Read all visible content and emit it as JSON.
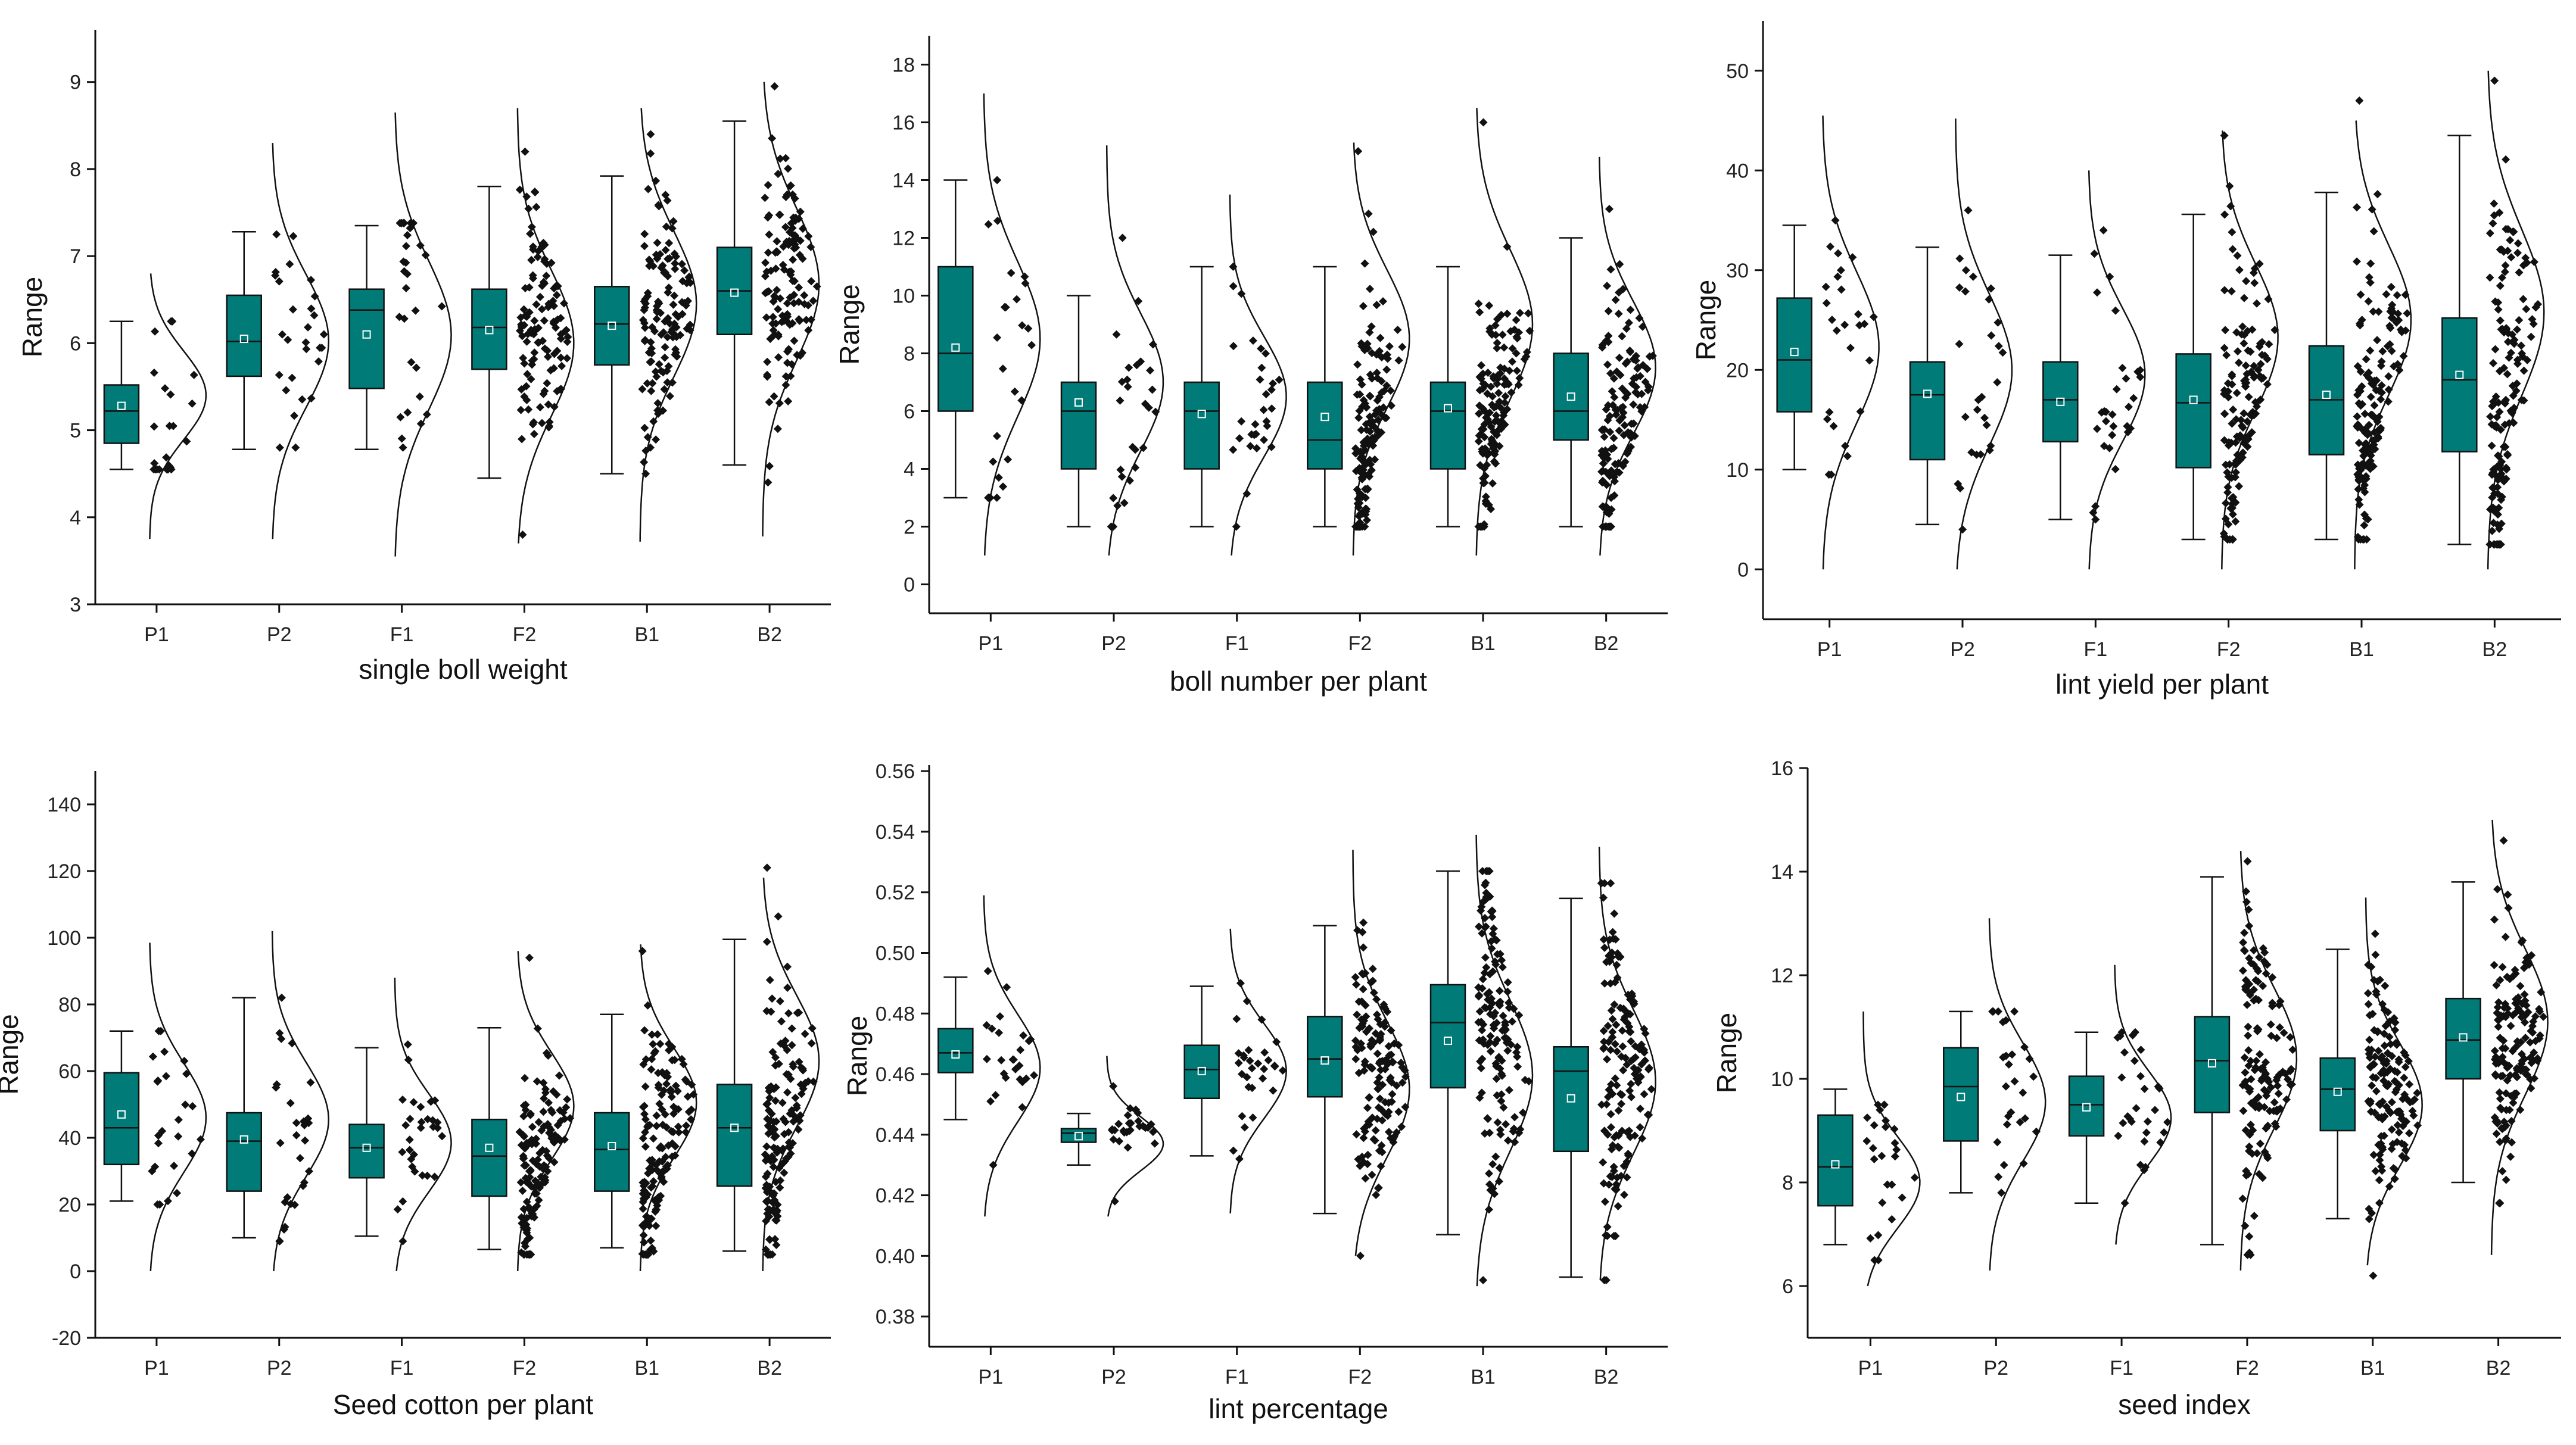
{
  "colors": {
    "box_fill": "#007b78",
    "box_stroke": "#111111",
    "axis": "#111111",
    "point": "#111111",
    "curve": "#111111"
  },
  "chart_data": [
    {
      "type": "box",
      "title": "",
      "xlabel": "single boll weight",
      "ylabel": "Range",
      "categories": [
        "P1",
        "P2",
        "F1",
        "F2",
        "B1",
        "B2"
      ],
      "ylim": [
        3,
        9.6
      ],
      "yticks": [
        "3",
        "4",
        "5",
        "6",
        "7",
        "8",
        "9"
      ],
      "boxes": [
        {
          "min": 4.55,
          "q1": 4.85,
          "median": 5.22,
          "mean": 5.28,
          "q3": 5.52,
          "max": 6.25,
          "cmin": 3.75,
          "cmax": 6.8,
          "n": 24,
          "smin": 4.55,
          "smax": 6.25
        },
        {
          "min": 4.78,
          "q1": 5.62,
          "median": 6.02,
          "mean": 6.05,
          "q3": 6.55,
          "max": 7.28,
          "cmin": 3.75,
          "cmax": 8.3,
          "n": 28,
          "smin": 4.8,
          "smax": 7.25
        },
        {
          "min": 4.78,
          "q1": 5.48,
          "median": 6.38,
          "mean": 6.1,
          "q3": 6.62,
          "max": 7.35,
          "cmin": 3.55,
          "cmax": 8.65,
          "n": 30,
          "smin": 4.8,
          "smax": 7.38
        },
        {
          "min": 4.45,
          "q1": 5.7,
          "median": 6.18,
          "mean": 6.15,
          "q3": 6.62,
          "max": 7.8,
          "cmin": 3.7,
          "cmax": 8.7,
          "n": 120,
          "smin": 3.8,
          "smax": 8.2
        },
        {
          "min": 4.5,
          "q1": 5.75,
          "median": 6.22,
          "mean": 6.2,
          "q3": 6.65,
          "max": 7.92,
          "cmin": 3.72,
          "cmax": 8.7,
          "n": 130,
          "smin": 4.5,
          "smax": 8.4
        },
        {
          "min": 4.6,
          "q1": 6.1,
          "median": 6.6,
          "mean": 6.58,
          "q3": 7.1,
          "max": 8.55,
          "cmin": 3.78,
          "cmax": 9.0,
          "n": 130,
          "smin": 4.4,
          "smax": 8.95
        }
      ]
    },
    {
      "type": "box",
      "title": "",
      "xlabel": "boll number per plant",
      "ylabel": "Range",
      "categories": [
        "P1",
        "P2",
        "F1",
        "F2",
        "B1",
        "B2"
      ],
      "ylim": [
        -1,
        19
      ],
      "yticks": [
        "0",
        "2",
        "4",
        "6",
        "8",
        "10",
        "12",
        "14",
        "16",
        "18"
      ],
      "boxes": [
        {
          "min": 3,
          "q1": 6,
          "median": 8,
          "mean": 8.2,
          "q3": 11,
          "max": 14,
          "cmin": 1,
          "cmax": 17,
          "n": 26,
          "smin": 3,
          "smax": 14
        },
        {
          "min": 2,
          "q1": 4,
          "median": 6,
          "mean": 6.3,
          "q3": 7,
          "max": 10,
          "cmin": 1,
          "cmax": 15.2,
          "n": 28,
          "smin": 2,
          "smax": 12
        },
        {
          "min": 2,
          "q1": 4,
          "median": 6,
          "mean": 5.9,
          "q3": 7,
          "max": 11,
          "cmin": 1,
          "cmax": 13.5,
          "n": 30,
          "smin": 2,
          "smax": 11
        },
        {
          "min": 2,
          "q1": 4,
          "median": 5,
          "mean": 5.8,
          "q3": 7,
          "max": 11,
          "cmin": 1,
          "cmax": 15.3,
          "n": 140,
          "smin": 2,
          "smax": 15
        },
        {
          "min": 2,
          "q1": 4,
          "median": 6,
          "mean": 6.1,
          "q3": 7,
          "max": 11,
          "cmin": 1,
          "cmax": 16.5,
          "n": 140,
          "smin": 2,
          "smax": 16
        },
        {
          "min": 2,
          "q1": 5,
          "median": 6,
          "mean": 6.5,
          "q3": 8,
          "max": 12,
          "cmin": 1,
          "cmax": 14.8,
          "n": 140,
          "smin": 2,
          "smax": 13
        }
      ]
    },
    {
      "type": "box",
      "title": "",
      "xlabel": "lint yield per plant",
      "ylabel": "Range",
      "categories": [
        "P1",
        "P2",
        "F1",
        "F2",
        "B1",
        "B2"
      ],
      "ylim": [
        -5,
        55
      ],
      "yticks": [
        "0",
        "10",
        "20",
        "30",
        "40",
        "50"
      ],
      "boxes": [
        {
          "min": 10,
          "q1": 15.8,
          "median": 21,
          "mean": 21.8,
          "q3": 27.2,
          "max": 34.5,
          "cmin": 0,
          "cmax": 45.5,
          "n": 26,
          "smin": 9.5,
          "smax": 35
        },
        {
          "min": 4.5,
          "q1": 11,
          "median": 17.5,
          "mean": 17.6,
          "q3": 20.8,
          "max": 32.3,
          "cmin": 0,
          "cmax": 45.2,
          "n": 28,
          "smin": 4,
          "smax": 36
        },
        {
          "min": 5,
          "q1": 12.8,
          "median": 17,
          "mean": 16.8,
          "q3": 20.8,
          "max": 31.5,
          "cmin": 0,
          "cmax": 40,
          "n": 30,
          "smin": 5,
          "smax": 34
        },
        {
          "min": 3,
          "q1": 10.2,
          "median": 16.7,
          "mean": 17,
          "q3": 21.6,
          "max": 35.6,
          "cmin": 0,
          "cmax": 44,
          "n": 140,
          "smin": 3,
          "smax": 43.5
        },
        {
          "min": 3,
          "q1": 11.5,
          "median": 17,
          "mean": 17.5,
          "q3": 22.4,
          "max": 37.8,
          "cmin": 0,
          "cmax": 45,
          "n": 150,
          "smin": 3,
          "smax": 47
        },
        {
          "min": 2.5,
          "q1": 11.8,
          "median": 19,
          "mean": 19.5,
          "q3": 25.2,
          "max": 43.5,
          "cmin": 0,
          "cmax": 50,
          "n": 150,
          "smin": 2.5,
          "smax": 49
        }
      ]
    },
    {
      "type": "box",
      "title": "",
      "xlabel": "Seed cotton per plant",
      "ylabel": "Range",
      "categories": [
        "P1",
        "P2",
        "F1",
        "F2",
        "B1",
        "B2"
      ],
      "ylim": [
        -20,
        150
      ],
      "yticks": [
        "-20",
        "0",
        "20",
        "40",
        "60",
        "80",
        "100",
        "120",
        "140"
      ],
      "boxes": [
        {
          "min": 21,
          "q1": 32,
          "median": 43,
          "mean": 47,
          "q3": 59.5,
          "max": 72,
          "cmin": 0,
          "cmax": 98.5,
          "n": 26,
          "smin": 20,
          "smax": 72
        },
        {
          "min": 10,
          "q1": 24,
          "median": 39,
          "mean": 39.5,
          "q3": 47.5,
          "max": 82,
          "cmin": 0,
          "cmax": 102,
          "n": 28,
          "smin": 9,
          "smax": 82
        },
        {
          "min": 10.5,
          "q1": 28,
          "median": 37,
          "mean": 37,
          "q3": 44,
          "max": 67,
          "cmin": 0,
          "cmax": 88,
          "n": 30,
          "smin": 9,
          "smax": 68
        },
        {
          "min": 6.5,
          "q1": 22.5,
          "median": 34.5,
          "mean": 37,
          "q3": 45.5,
          "max": 73,
          "cmin": 0,
          "cmax": 96,
          "n": 140,
          "smin": 5,
          "smax": 94
        },
        {
          "min": 7,
          "q1": 24,
          "median": 36.5,
          "mean": 37.5,
          "q3": 47.5,
          "max": 77,
          "cmin": 0,
          "cmax": 98,
          "n": 150,
          "smin": 5,
          "smax": 96
        },
        {
          "min": 6,
          "q1": 25.5,
          "median": 43,
          "mean": 43,
          "q3": 56,
          "max": 99.5,
          "cmin": 0,
          "cmax": 118,
          "n": 150,
          "smin": 5,
          "smax": 121
        }
      ]
    },
    {
      "type": "box",
      "title": "",
      "xlabel": "lint percentage",
      "ylabel": "Range",
      "categories": [
        "P1",
        "P2",
        "F1",
        "F2",
        "B1",
        "B2"
      ],
      "ylim": [
        0.37,
        0.562
      ],
      "yticks": [
        "0.38",
        "0.40",
        "0.42",
        "0.44",
        "0.46",
        "0.48",
        "0.50",
        "0.52",
        "0.54",
        "0.56"
      ],
      "boxes": [
        {
          "min": 0.445,
          "q1": 0.4605,
          "median": 0.467,
          "mean": 0.4665,
          "q3": 0.475,
          "max": 0.492,
          "cmin": 0.413,
          "cmax": 0.519,
          "n": 26,
          "smin": 0.43,
          "smax": 0.494
        },
        {
          "min": 0.43,
          "q1": 0.4375,
          "median": 0.4405,
          "mean": 0.4395,
          "q3": 0.442,
          "max": 0.447,
          "cmin": 0.413,
          "cmax": 0.466,
          "n": 28,
          "smin": 0.418,
          "smax": 0.456
        },
        {
          "min": 0.433,
          "q1": 0.452,
          "median": 0.4615,
          "mean": 0.461,
          "q3": 0.4695,
          "max": 0.489,
          "cmin": 0.414,
          "cmax": 0.508,
          "n": 30,
          "smin": 0.432,
          "smax": 0.49
        },
        {
          "min": 0.414,
          "q1": 0.4525,
          "median": 0.465,
          "mean": 0.4645,
          "q3": 0.479,
          "max": 0.509,
          "cmin": 0.4,
          "cmax": 0.534,
          "n": 140,
          "smin": 0.4,
          "smax": 0.51
        },
        {
          "min": 0.407,
          "q1": 0.4555,
          "median": 0.477,
          "mean": 0.471,
          "q3": 0.4895,
          "max": 0.527,
          "cmin": 0.39,
          "cmax": 0.539,
          "n": 150,
          "smin": 0.392,
          "smax": 0.527
        },
        {
          "min": 0.393,
          "q1": 0.4345,
          "median": 0.461,
          "mean": 0.452,
          "q3": 0.469,
          "max": 0.518,
          "cmin": 0.392,
          "cmax": 0.535,
          "n": 150,
          "smin": 0.392,
          "smax": 0.523
        }
      ]
    },
    {
      "type": "box",
      "title": "",
      "xlabel": "seed index",
      "ylabel": "Range",
      "categories": [
        "P1",
        "P2",
        "F1",
        "F2",
        "B1",
        "B2"
      ],
      "ylim": [
        5,
        16
      ],
      "yticks": [
        "6",
        "8",
        "10",
        "12",
        "14",
        "16"
      ],
      "boxes": [
        {
          "min": 6.8,
          "q1": 7.55,
          "median": 8.3,
          "mean": 8.35,
          "q3": 9.3,
          "max": 9.8,
          "cmin": 6.0,
          "cmax": 11.3,
          "n": 26,
          "smin": 6.5,
          "smax": 9.5
        },
        {
          "min": 7.8,
          "q1": 8.8,
          "median": 9.85,
          "mean": 9.65,
          "q3": 10.6,
          "max": 11.3,
          "cmin": 6.3,
          "cmax": 13.1,
          "n": 28,
          "smin": 7.8,
          "smax": 11.3
        },
        {
          "min": 7.6,
          "q1": 8.9,
          "median": 9.5,
          "mean": 9.45,
          "q3": 10.05,
          "max": 10.9,
          "cmin": 6.8,
          "cmax": 12.2,
          "n": 30,
          "smin": 7.6,
          "smax": 10.9
        },
        {
          "min": 6.8,
          "q1": 9.35,
          "median": 10.35,
          "mean": 10.3,
          "q3": 11.2,
          "max": 13.9,
          "cmin": 6.3,
          "cmax": 14.4,
          "n": 140,
          "smin": 6.6,
          "smax": 14.2
        },
        {
          "min": 7.3,
          "q1": 9.0,
          "median": 9.8,
          "mean": 9.75,
          "q3": 10.4,
          "max": 12.5,
          "cmin": 6.4,
          "cmax": 13.5,
          "n": 150,
          "smin": 6.2,
          "smax": 12.8
        },
        {
          "min": 8.0,
          "q1": 10.0,
          "median": 10.75,
          "mean": 10.8,
          "q3": 11.55,
          "max": 13.8,
          "cmin": 6.6,
          "cmax": 15.0,
          "n": 150,
          "smin": 7.6,
          "smax": 14.6
        }
      ]
    }
  ]
}
